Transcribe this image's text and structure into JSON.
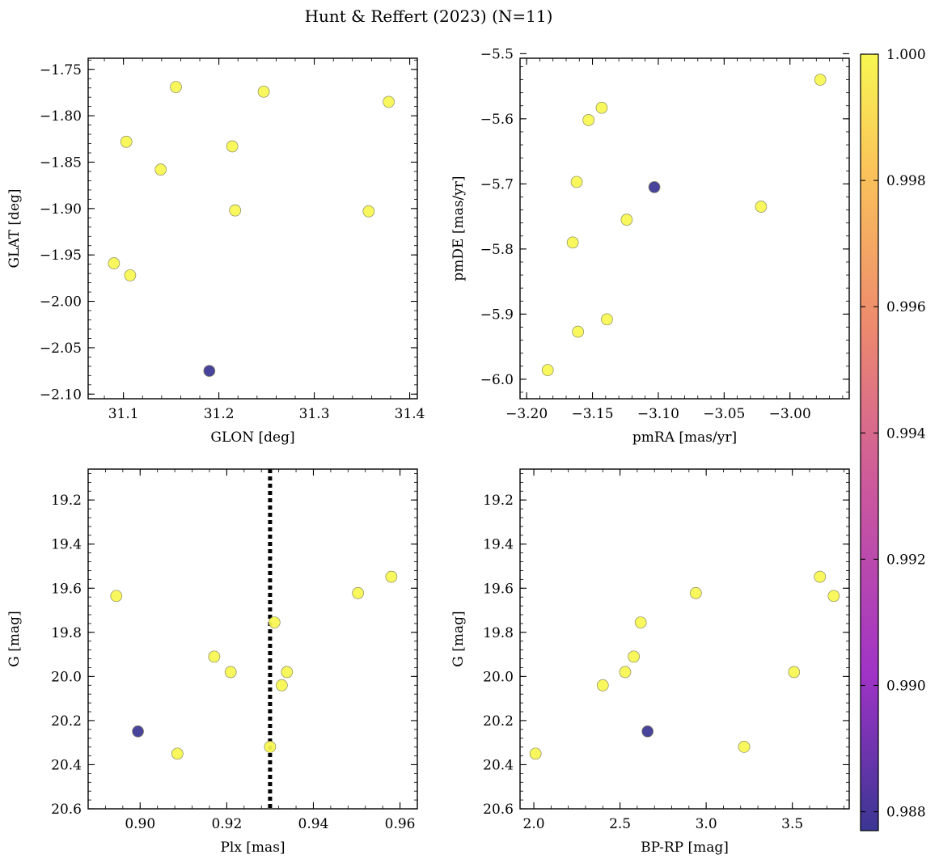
{
  "title": "Hunt & Reffert (2023) (N=11)",
  "colorbar": {
    "vmin": 0.9877,
    "vmax": 1.0,
    "ticks": [
      0.988,
      0.99,
      0.992,
      0.994,
      0.996,
      0.998,
      1.0
    ],
    "tick_labels": [
      "0.988",
      "0.990",
      "0.992",
      "0.994",
      "0.996",
      "0.998",
      "1.000"
    ],
    "colormap": "plasma",
    "colors": [
      "#3a3693",
      "#9f33c6",
      "#cd5a9b",
      "#ed8a6e",
      "#fbc35a",
      "#f7f752"
    ]
  },
  "chart_data": [
    {
      "type": "scatter",
      "xlabel": "GLON [deg]",
      "ylabel": "GLAT [deg]",
      "xlim": [
        31.063,
        31.408
      ],
      "ylim": [
        -2.105,
        -1.738
      ],
      "y_inverted": false,
      "xticks": [
        31.1,
        31.2,
        31.3,
        31.4
      ],
      "xtick_labels": [
        "31.1",
        "31.2",
        "31.3",
        "31.4"
      ],
      "yticks": [
        -1.75,
        -1.8,
        -1.85,
        -1.9,
        -1.95,
        -2.0,
        -2.05,
        -2.1
      ],
      "ytick_labels": [
        "−1.75",
        "−1.80",
        "−1.85",
        "−1.90",
        "−1.95",
        "−2.00",
        "−2.05",
        "−2.10"
      ],
      "vline": null,
      "points": [
        {
          "x": 31.155,
          "y": -1.769,
          "c": 1.0
        },
        {
          "x": 31.247,
          "y": -1.774,
          "c": 1.0
        },
        {
          "x": 31.378,
          "y": -1.785,
          "c": 1.0
        },
        {
          "x": 31.103,
          "y": -1.828,
          "c": 1.0
        },
        {
          "x": 31.214,
          "y": -1.833,
          "c": 1.0
        },
        {
          "x": 31.139,
          "y": -1.858,
          "c": 1.0
        },
        {
          "x": 31.217,
          "y": -1.902,
          "c": 1.0
        },
        {
          "x": 31.357,
          "y": -1.903,
          "c": 1.0
        },
        {
          "x": 31.09,
          "y": -1.959,
          "c": 1.0
        },
        {
          "x": 31.107,
          "y": -1.972,
          "c": 1.0
        },
        {
          "x": 31.19,
          "y": -2.075,
          "c": 0.9877
        }
      ]
    },
    {
      "type": "scatter",
      "xlabel": "pmRA [mas/yr]",
      "ylabel": "pmDE [mas/yr]",
      "xlim": [
        -3.205,
        -2.955
      ],
      "ylim": [
        -6.03,
        -5.507
      ],
      "y_inverted": false,
      "xticks": [
        -3.2,
        -3.15,
        -3.1,
        -3.05,
        -3.0
      ],
      "xtick_labels": [
        "−3.20",
        "−3.15",
        "−3.10",
        "−3.05",
        "−3.00"
      ],
      "yticks": [
        -5.5,
        -5.6,
        -5.7,
        -5.8,
        -5.9,
        -6.0
      ],
      "ytick_labels": [
        "−5.5",
        "−5.6",
        "−5.7",
        "−5.8",
        "−5.9",
        "−6.0"
      ],
      "vline": null,
      "points": [
        {
          "x": -2.977,
          "y": -5.54,
          "c": 1.0
        },
        {
          "x": -3.143,
          "y": -5.583,
          "c": 1.0
        },
        {
          "x": -3.153,
          "y": -5.602,
          "c": 1.0
        },
        {
          "x": -3.162,
          "y": -5.697,
          "c": 1.0
        },
        {
          "x": -3.103,
          "y": -5.705,
          "c": 0.9877
        },
        {
          "x": -3.022,
          "y": -5.735,
          "c": 1.0
        },
        {
          "x": -3.124,
          "y": -5.755,
          "c": 1.0
        },
        {
          "x": -3.165,
          "y": -5.79,
          "c": 1.0
        },
        {
          "x": -3.139,
          "y": -5.908,
          "c": 1.0
        },
        {
          "x": -3.161,
          "y": -5.927,
          "c": 1.0
        },
        {
          "x": -3.184,
          "y": -5.986,
          "c": 1.0
        }
      ]
    },
    {
      "type": "scatter",
      "xlabel": "Plx [mas]",
      "ylabel": "G [mag]",
      "xlim": [
        0.888,
        0.964
      ],
      "ylim": [
        19.06,
        20.6
      ],
      "y_inverted": true,
      "xticks": [
        0.9,
        0.92,
        0.94,
        0.96
      ],
      "xtick_labels": [
        "0.90",
        "0.92",
        "0.94",
        "0.96"
      ],
      "yticks": [
        19.2,
        19.4,
        19.6,
        19.8,
        20.0,
        20.2,
        20.4,
        20.6
      ],
      "ytick_labels": [
        "19.2",
        "19.4",
        "19.6",
        "19.8",
        "20.0",
        "20.2",
        "20.4",
        "20.6"
      ],
      "vline": 0.93,
      "points": [
        {
          "x": 0.958,
          "y": 19.548,
          "c": 1.0
        },
        {
          "x": 0.9503,
          "y": 19.622,
          "c": 1.0
        },
        {
          "x": 0.8945,
          "y": 19.635,
          "c": 1.0
        },
        {
          "x": 0.931,
          "y": 19.755,
          "c": 1.0
        },
        {
          "x": 0.9171,
          "y": 19.91,
          "c": 1.0
        },
        {
          "x": 0.9209,
          "y": 19.98,
          "c": 1.0
        },
        {
          "x": 0.9339,
          "y": 19.98,
          "c": 1.0
        },
        {
          "x": 0.9327,
          "y": 20.04,
          "c": 1.0
        },
        {
          "x": 0.8995,
          "y": 20.249,
          "c": 0.9877
        },
        {
          "x": 0.93,
          "y": 20.319,
          "c": 1.0
        },
        {
          "x": 0.9086,
          "y": 20.35,
          "c": 1.0
        }
      ]
    },
    {
      "type": "scatter",
      "xlabel": "BP-RP [mag]",
      "ylabel": "G [mag]",
      "xlim": [
        1.92,
        3.83
      ],
      "ylim": [
        19.06,
        20.6
      ],
      "y_inverted": true,
      "xticks": [
        2.0,
        2.5,
        3.0,
        3.5
      ],
      "xtick_labels": [
        "2.0",
        "2.5",
        "3.0",
        "3.5"
      ],
      "yticks": [
        19.2,
        19.4,
        19.6,
        19.8,
        20.0,
        20.2,
        20.4,
        20.6
      ],
      "ytick_labels": [
        "19.2",
        "19.4",
        "19.6",
        "19.8",
        "20.0",
        "20.2",
        "20.4",
        "20.6"
      ],
      "vline": null,
      "points": [
        {
          "x": 3.66,
          "y": 19.548,
          "c": 1.0
        },
        {
          "x": 2.94,
          "y": 19.622,
          "c": 1.0
        },
        {
          "x": 3.74,
          "y": 19.635,
          "c": 1.0
        },
        {
          "x": 2.62,
          "y": 19.755,
          "c": 1.0
        },
        {
          "x": 2.58,
          "y": 19.91,
          "c": 1.0
        },
        {
          "x": 2.53,
          "y": 19.98,
          "c": 1.0
        },
        {
          "x": 3.51,
          "y": 19.98,
          "c": 1.0
        },
        {
          "x": 2.4,
          "y": 20.04,
          "c": 1.0
        },
        {
          "x": 2.66,
          "y": 20.249,
          "c": 0.9877
        },
        {
          "x": 3.22,
          "y": 20.319,
          "c": 1.0
        },
        {
          "x": 2.01,
          "y": 20.35,
          "c": 1.0
        }
      ]
    }
  ]
}
